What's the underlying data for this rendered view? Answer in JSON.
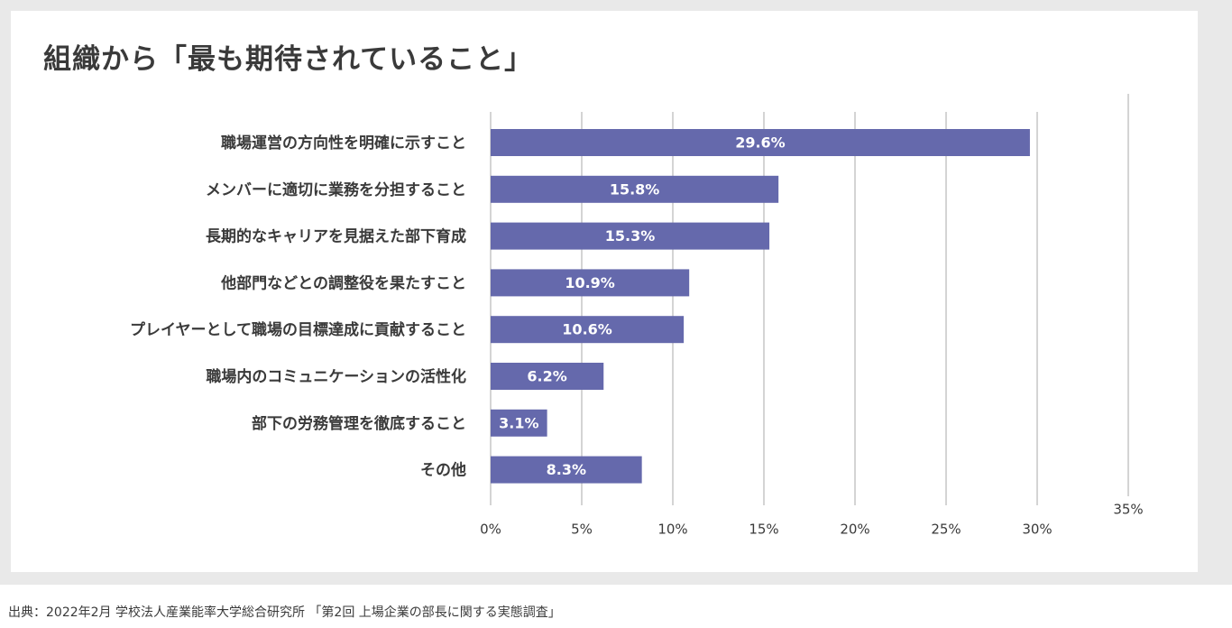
{
  "chart_data": {
    "type": "bar",
    "orientation": "horizontal",
    "title": "組織から「最も期待されていること」",
    "categories": [
      "職場運営の方向性を明確に示すこと",
      "メンバーに適切に業務を分担すること",
      "長期的なキャリアを見据えた部下育成",
      "他部門などとの調整役を果たすこと",
      "プレイヤーとして職場の目標達成に貢献すること",
      "職場内のコミュニケーションの活性化",
      "部下の労務管理を徹底すること",
      "その他"
    ],
    "values": [
      29.6,
      15.8,
      15.3,
      10.9,
      10.6,
      6.2,
      3.1,
      8.3
    ],
    "data_labels": [
      "29.6%",
      "15.8%",
      "15.3%",
      "10.9%",
      "10.6%",
      "6.2%",
      "3.1%",
      "8.3%"
    ],
    "xlim": [
      0,
      35
    ],
    "x_ticks": [
      "0%",
      "5%",
      "10%",
      "15%",
      "20%",
      "25%",
      "30%",
      "35%"
    ],
    "grid": true,
    "bar_color": "#6569ac",
    "grid_color": "#d4d4d4"
  },
  "source_note": "出典：2022年2月 学校法人産業能率大学総合研究所 「第2回 上場企業の部長に関する実態調査」"
}
